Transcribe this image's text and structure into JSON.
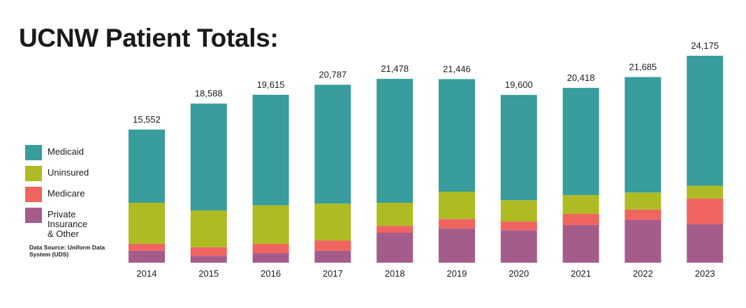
{
  "title": "UCNW Patient Totals:",
  "source": "Data Source: Uniform Data System (UDS)",
  "colors": {
    "Medicaid": "#389d9c",
    "Uninsured": "#aebb23",
    "Medicare": "#f06460",
    "Private": "#a45d8b"
  },
  "legend": [
    {
      "key": "Medicaid",
      "label": "Medicaid"
    },
    {
      "key": "Uninsured",
      "label": "Uninsured"
    },
    {
      "key": "Medicare",
      "label": "Medicare"
    },
    {
      "key": "Private",
      "label": "Private\nInsurance\n& Other"
    }
  ],
  "chart_data": {
    "type": "bar",
    "stacked": true,
    "title": "UCNW Patient Totals:",
    "categories": [
      "2014",
      "2015",
      "2016",
      "2017",
      "2018",
      "2019",
      "2020",
      "2021",
      "2022",
      "2023"
    ],
    "totals_labels": [
      "15,552",
      "18,588",
      "19,615",
      "20,787",
      "21,478",
      "21,446",
      "19,600",
      "20,418",
      "21,685",
      "24,175"
    ],
    "totals": [
      15552,
      18588,
      19615,
      20787,
      21478,
      21446,
      19600,
      20418,
      21685,
      24175
    ],
    "series": [
      {
        "name": "Private Insurance & Other",
        "key": "Private",
        "values": [
          1400,
          800,
          1100,
          1400,
          3500,
          4000,
          3800,
          4400,
          5000,
          4500
        ]
      },
      {
        "name": "Medicare",
        "key": "Medicare",
        "values": [
          800,
          1000,
          1100,
          1200,
          800,
          1100,
          1000,
          1300,
          1200,
          3000
        ]
      },
      {
        "name": "Uninsured",
        "key": "Uninsured",
        "values": [
          4800,
          4300,
          4500,
          4300,
          2700,
          3200,
          2500,
          2200,
          2000,
          1500
        ]
      },
      {
        "name": "Medicaid",
        "key": "Medicaid",
        "values": [
          8552,
          12488,
          12915,
          13887,
          14478,
          13146,
          12300,
          12518,
          13485,
          15175
        ]
      }
    ],
    "ylim": [
      0,
      24175
    ],
    "grid": false,
    "legend_position": "left"
  }
}
